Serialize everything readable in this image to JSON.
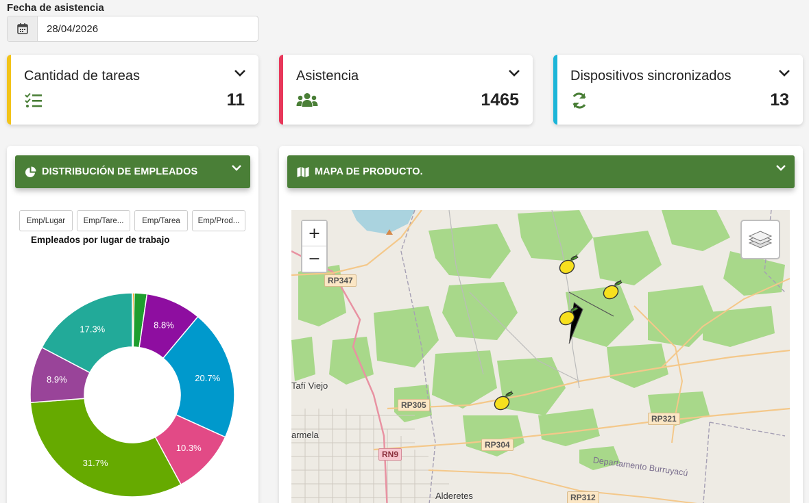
{
  "filter": {
    "label": "Fecha de asistencia",
    "date_value": "28/04/2026",
    "icon": "calendar-icon"
  },
  "cards": [
    {
      "title": "Cantidad de tareas",
      "value": "11",
      "icon": "task-list-icon",
      "accent": "#f2c318"
    },
    {
      "title": "Asistencia",
      "value": "1465",
      "icon": "users-icon",
      "accent": "#e8375a"
    },
    {
      "title": "Dispositivos sincronizados",
      "value": "13",
      "icon": "sync-icon",
      "accent": "#1cb5d8"
    }
  ],
  "distribution": {
    "header": "DISTRIBUCIÓN DE EMPLEADOS",
    "tabs": [
      "Emp/Lugar",
      "Emp/Tare...",
      "Emp/Tarea",
      "Emp/Prod..."
    ],
    "chart_title": "Empleados por lugar de trabajo"
  },
  "chart_data": {
    "type": "pie",
    "title": "Empleados por lugar de trabajo",
    "donut": true,
    "slices": [
      {
        "value": 0.3,
        "label": "",
        "color": "#f39c12"
      },
      {
        "value": 2.0,
        "label": "",
        "color": "#1e9e2e"
      },
      {
        "value": 8.8,
        "label": "8.8%",
        "color": "#8e0ea0"
      },
      {
        "value": 20.7,
        "label": "20.7%",
        "color": "#0099cc"
      },
      {
        "value": 10.3,
        "label": "10.3%",
        "color": "#e24a86"
      },
      {
        "value": 31.7,
        "label": "31.7%",
        "color": "#66aa00"
      },
      {
        "value": 8.9,
        "label": "8.9%",
        "color": "#994499"
      },
      {
        "value": 17.3,
        "label": "17.3%",
        "color": "#22aa99"
      }
    ]
  },
  "map": {
    "header": "MAPA DE PRODUCTO.",
    "zoom_in": "+",
    "zoom_out": "−",
    "labels": {
      "rp347": "RP347",
      "tafi": "Tafí Viejo",
      "rp305": "RP305",
      "rp321": "RP321",
      "rn9": "RN9",
      "rp304": "RP304",
      "armela": "armela",
      "depto": "Departamento Burruyacú",
      "alderetes": "Alderetes",
      "rp312": "RP312"
    },
    "markers": [
      "lemon-marker",
      "lemon-marker",
      "lemon-marker",
      "lemon-marker"
    ]
  },
  "colors": {
    "brand_green": "#4a7f37",
    "map_green": "#a8d88a"
  }
}
